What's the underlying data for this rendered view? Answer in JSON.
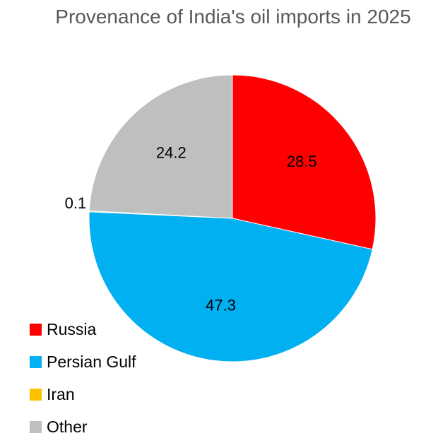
{
  "chart_data": {
    "type": "pie",
    "title": "Provenance of India's oil imports in 2025",
    "categories": [
      "Russia",
      "Persian Gulf",
      "Iran",
      "Other"
    ],
    "values": [
      28.5,
      47.3,
      0.1,
      24.2
    ],
    "value_labels": [
      "28.5",
      "47.3",
      "0.1",
      "24.2"
    ],
    "colors": [
      "#FF0000",
      "#00B0F0",
      "#FFC000",
      "#BFBFBF"
    ],
    "start_angle": "12 o'clock",
    "direction": "clockwise",
    "legend_position": "bottom-left"
  }
}
